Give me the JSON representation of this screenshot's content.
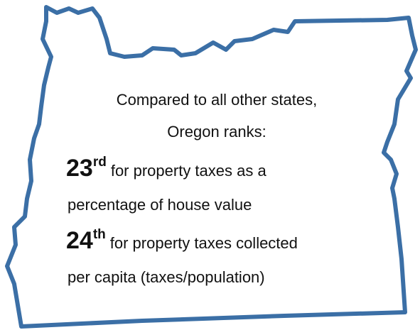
{
  "intro": [
    "Compared to all other states,",
    "Oregon ranks:"
  ],
  "ranks": [
    {
      "number": "23",
      "suffix": "rd",
      "lines": [
        "for property taxes as a",
        "percentage of house value"
      ]
    },
    {
      "number": "24",
      "suffix": "th",
      "lines": [
        "for property taxes collected",
        "per capita (taxes/population)"
      ]
    }
  ]
}
